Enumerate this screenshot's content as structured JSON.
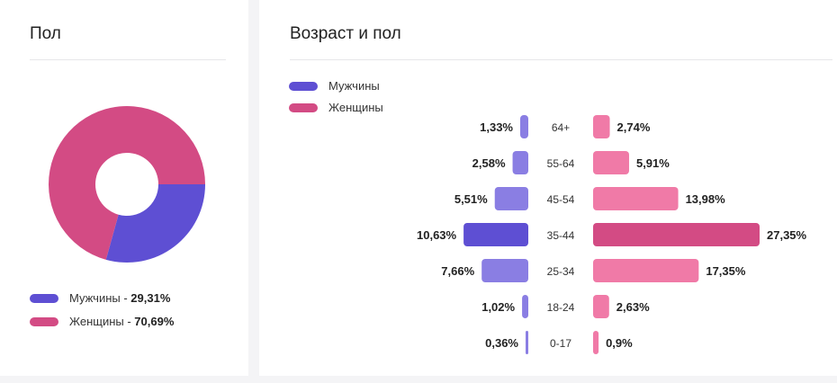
{
  "colors": {
    "men": "#5e4fd3",
    "women": "#d34b84",
    "men_light": "#8a7ee3",
    "women_light": "#f07aa7"
  },
  "gender_card": {
    "title": "Пол",
    "legend": [
      {
        "label": "Мужчины",
        "separator": " - ",
        "value": "29,31%"
      },
      {
        "label": "Женщины",
        "separator": " - ",
        "value": "70,69%"
      }
    ]
  },
  "age_card": {
    "title": "Возраст и пол",
    "legend": [
      {
        "label": "Мужчины"
      },
      {
        "label": "Женщины"
      }
    ]
  },
  "chart_data": [
    {
      "type": "pie",
      "variant": "donut",
      "labels": [
        "Мужчины",
        "Женщины"
      ],
      "values": [
        29.31,
        70.69
      ],
      "colors": [
        "#5e4fd3",
        "#d34b84"
      ],
      "legend_position": "bottom-left"
    },
    {
      "type": "bar",
      "variant": "butterfly",
      "categories": [
        "64+",
        "55-64",
        "45-54",
        "35-44",
        "25-34",
        "18-24",
        "0-17"
      ],
      "series": [
        {
          "name": "Мужчины",
          "values": [
            1.33,
            2.58,
            5.51,
            10.63,
            7.66,
            1.02,
            0.36
          ],
          "labels": [
            "1,33%",
            "2,58%",
            "5,51%",
            "10,63%",
            "7,66%",
            "1,02%",
            "0,36%"
          ]
        },
        {
          "name": "Женщины",
          "values": [
            2.74,
            5.91,
            13.98,
            27.35,
            17.35,
            2.63,
            0.9
          ],
          "labels": [
            "2,74%",
            "5,91%",
            "13,98%",
            "27,35%",
            "17,35%",
            "2,63%",
            "0,9%"
          ]
        }
      ],
      "legend_position": "top-left",
      "grid": false
    }
  ]
}
